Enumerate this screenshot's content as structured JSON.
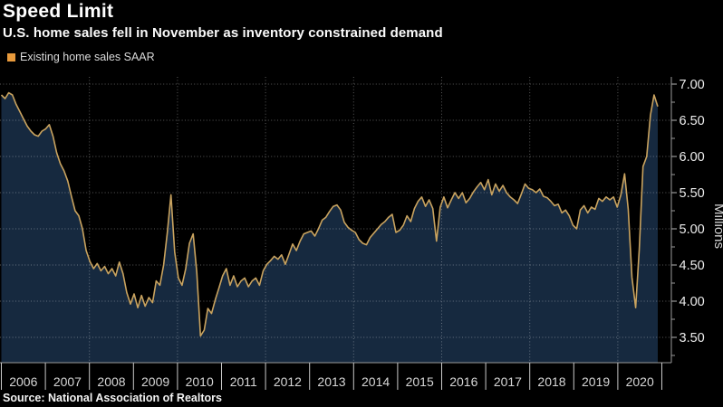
{
  "header": {
    "title": "Speed Limit",
    "subtitle": "U.S. home sales fell in November as inventory constrained demand"
  },
  "legend": {
    "label": "Existing home sales SAAR"
  },
  "source": {
    "text": "Source: National Association of Realtors"
  },
  "y_axis": {
    "unit_label": "Millions",
    "tick_labels": [
      "7.00",
      "6.50",
      "6.00",
      "5.50",
      "5.00",
      "4.50",
      "4.00",
      "3.50"
    ],
    "tick_values": [
      7.0,
      6.5,
      6.0,
      5.5,
      5.0,
      4.5,
      4.0,
      3.5
    ],
    "minor_tick_step": 0.25
  },
  "x_axis": {
    "year_labels": [
      "2006",
      "2007",
      "2008",
      "2009",
      "2010",
      "2011",
      "2012",
      "2013",
      "2014",
      "2015",
      "2016",
      "2017",
      "2018",
      "2019",
      "2020"
    ]
  },
  "colors": {
    "background": "#000000",
    "area_fill": "#16293F",
    "line": "#C9A35F",
    "legend_swatch": "#E89A3C",
    "grid": "rgba(255,255,255,0.35)",
    "axis": "#9a9a9a",
    "x_tick": "#c9c9c9",
    "tick_label": "#ececec",
    "year_label": "#d6d6d6",
    "unit_label": "#d6d6d6"
  },
  "chart_data": {
    "type": "area",
    "title": "Speed Limit",
    "subtitle": "U.S. home sales fell in November as inventory constrained demand",
    "xlabel": "",
    "ylabel": "Millions",
    "ylim": [
      3.25,
      7.1
    ],
    "yticks": [
      3.5,
      4.0,
      4.5,
      5.0,
      5.5,
      6.0,
      6.5,
      7.0
    ],
    "xticks": [
      "2006",
      "2007",
      "2008",
      "2009",
      "2010",
      "2011",
      "2012",
      "2013",
      "2014",
      "2015",
      "2016",
      "2017",
      "2018",
      "2019",
      "2020"
    ],
    "grid": true,
    "legend_position": "top-left",
    "series": [
      {
        "name": "Existing home sales SAAR",
        "units": "millions",
        "start": "2006-01",
        "end": "2020-11",
        "frequency": "monthly",
        "values": [
          6.85,
          6.8,
          6.88,
          6.85,
          6.72,
          6.62,
          6.52,
          6.42,
          6.35,
          6.3,
          6.28,
          6.35,
          6.38,
          6.44,
          6.28,
          6.05,
          5.9,
          5.8,
          5.66,
          5.45,
          5.25,
          5.18,
          5.0,
          4.7,
          4.55,
          4.45,
          4.52,
          4.42,
          4.48,
          4.38,
          4.45,
          4.35,
          4.54,
          4.38,
          4.12,
          3.96,
          4.1,
          3.91,
          4.08,
          3.93,
          4.05,
          3.98,
          4.28,
          4.22,
          4.5,
          4.95,
          5.47,
          4.68,
          4.32,
          4.22,
          4.45,
          4.8,
          4.93,
          4.4,
          3.52,
          3.6,
          3.9,
          3.83,
          4.02,
          4.18,
          4.35,
          4.45,
          4.22,
          4.35,
          4.2,
          4.28,
          4.32,
          4.2,
          4.28,
          4.32,
          4.22,
          4.42,
          4.51,
          4.56,
          4.62,
          4.58,
          4.64,
          4.51,
          4.65,
          4.79,
          4.7,
          4.83,
          4.93,
          4.95,
          4.97,
          4.9,
          5.0,
          5.12,
          5.16,
          5.24,
          5.31,
          5.33,
          5.26,
          5.09,
          5.02,
          4.98,
          4.95,
          4.85,
          4.8,
          4.78,
          4.88,
          4.94,
          5.0,
          5.06,
          5.1,
          5.16,
          5.2,
          4.95,
          4.98,
          5.05,
          5.18,
          5.1,
          5.28,
          5.38,
          5.44,
          5.31,
          5.4,
          5.28,
          4.83,
          5.3,
          5.44,
          5.29,
          5.4,
          5.5,
          5.42,
          5.5,
          5.36,
          5.42,
          5.51,
          5.58,
          5.64,
          5.54,
          5.68,
          5.47,
          5.62,
          5.52,
          5.6,
          5.5,
          5.44,
          5.4,
          5.35,
          5.48,
          5.62,
          5.56,
          5.54,
          5.5,
          5.55,
          5.45,
          5.43,
          5.38,
          5.32,
          5.34,
          5.22,
          5.26,
          5.18,
          5.05,
          5.0,
          5.26,
          5.32,
          5.22,
          5.3,
          5.27,
          5.42,
          5.38,
          5.44,
          5.4,
          5.44,
          5.3,
          5.47,
          5.76,
          5.27,
          4.33,
          3.91,
          4.72,
          5.86,
          6.0,
          6.57,
          6.85,
          6.69
        ]
      }
    ]
  }
}
